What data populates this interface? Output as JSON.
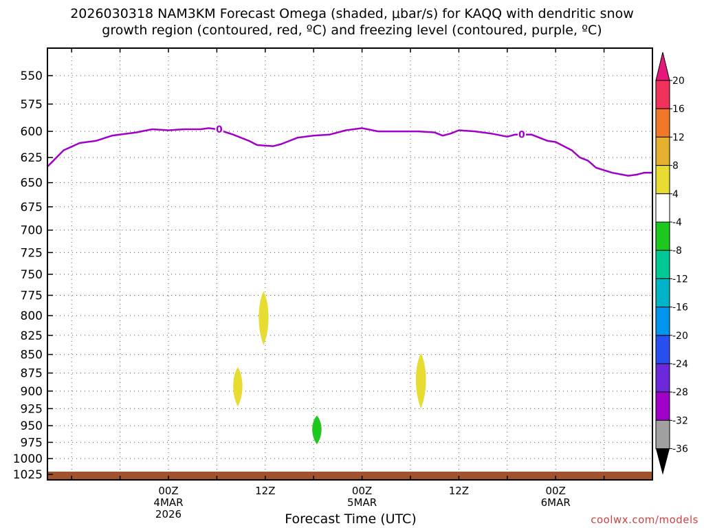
{
  "chart_data": {
    "type": "heatmap",
    "title_line1": "2026030318 NAM3KM Forecast Omega (shaded, μbar/s) for KAQQ with dendritic snow",
    "title_line2": "growth region (contoured, red, ºC) and freezing level (contoured, purple, ºC)",
    "xlabel": "Forecast Time (UTC)",
    "credit": "coolwx.com/models",
    "x_range_hours": [
      -9,
      66
    ],
    "y_range_mb": [
      525,
      1035
    ],
    "yticks": [
      550,
      575,
      600,
      625,
      650,
      675,
      700,
      725,
      750,
      775,
      800,
      825,
      850,
      875,
      900,
      925,
      950,
      975,
      1000,
      1025
    ],
    "xticks": [
      {
        "hour": 6,
        "line1": "00Z",
        "line2": "4MAR",
        "line3": "2026"
      },
      {
        "hour": 18,
        "line1": "12Z",
        "line2": "",
        "line3": ""
      },
      {
        "hour": 30,
        "line1": "00Z",
        "line2": "5MAR",
        "line3": ""
      },
      {
        "hour": 42,
        "line1": "12Z",
        "line2": "",
        "line3": ""
      },
      {
        "hour": 54,
        "line1": "00Z",
        "line2": "6MAR",
        "line3": ""
      }
    ],
    "freezing_level": {
      "label": "0",
      "color": "#a000c8",
      "points": [
        [
          -9,
          634
        ],
        [
          -7,
          618
        ],
        [
          -5,
          611
        ],
        [
          -3,
          609
        ],
        [
          -1,
          604
        ],
        [
          2,
          601
        ],
        [
          4,
          598
        ],
        [
          6,
          599
        ],
        [
          8,
          598
        ],
        [
          10,
          598
        ],
        [
          11,
          597
        ],
        [
          12,
          598
        ],
        [
          14,
          603
        ],
        [
          16,
          609
        ],
        [
          17,
          613
        ],
        [
          19,
          614
        ],
        [
          20,
          612
        ],
        [
          22,
          606
        ],
        [
          24,
          604
        ],
        [
          26,
          603
        ],
        [
          28,
          599
        ],
        [
          30,
          597
        ],
        [
          32,
          600
        ],
        [
          35,
          600
        ],
        [
          37,
          600
        ],
        [
          39,
          601
        ],
        [
          40,
          604
        ],
        [
          41,
          602
        ],
        [
          42,
          599
        ],
        [
          44,
          600
        ],
        [
          46,
          602
        ],
        [
          48,
          605
        ],
        [
          49,
          603
        ],
        [
          51,
          603
        ],
        [
          53,
          609
        ],
        [
          54,
          610
        ],
        [
          56,
          618
        ],
        [
          57,
          625
        ],
        [
          58,
          628
        ],
        [
          59,
          635
        ],
        [
          61,
          640
        ],
        [
          63,
          643
        ],
        [
          64,
          642
        ],
        [
          65,
          640
        ],
        [
          66,
          640
        ]
      ]
    },
    "omega_regions": [
      {
        "label": "4 to 8",
        "color": "#e6dc32",
        "center_hour": 17.8,
        "top_mb": 770,
        "bottom_mb": 838
      },
      {
        "label": "4 to 8",
        "color": "#e6dc32",
        "center_hour": 14.6,
        "top_mb": 867,
        "bottom_mb": 922
      },
      {
        "label": "-8 to -4",
        "color": "#1ec81e",
        "center_hour": 24.4,
        "top_mb": 935,
        "bottom_mb": 978
      },
      {
        "label": "4 to 8",
        "color": "#e6dc32",
        "center_hour": 37.3,
        "top_mb": 848,
        "bottom_mb": 925
      }
    ],
    "colorbar": {
      "labels": [
        "20",
        "16",
        "12",
        "8",
        "4",
        "-4",
        "-8",
        "-12",
        "-16",
        "-20",
        "-24",
        "-28",
        "-32",
        "-36"
      ],
      "colors": [
        "#f0325a",
        "#f07828",
        "#e6af2d",
        "#e6dc32",
        "#ffffff",
        "#1ec81e",
        "#00c896",
        "#00b4c8",
        "#0096f0",
        "#2850f0",
        "#6e28dc",
        "#a000c8",
        "#a0a0a0"
      ],
      "top_arrow_color": "#e6187a",
      "bottom_arrow_color": "#000000"
    },
    "terrain_color": "#a0522d"
  }
}
